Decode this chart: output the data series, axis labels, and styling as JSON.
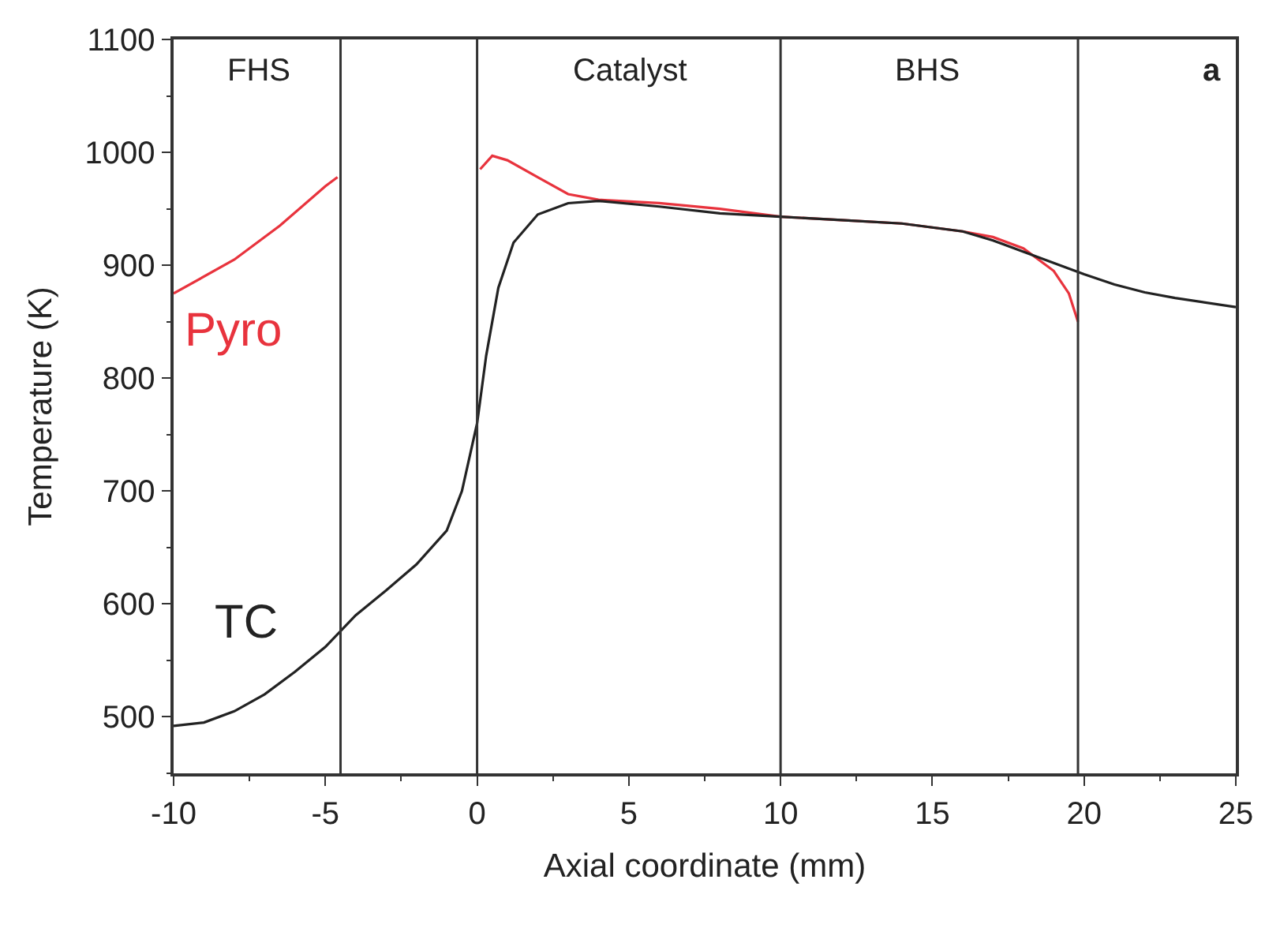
{
  "chart_data": {
    "type": "line",
    "xlabel": "Axial coordinate (mm)",
    "ylabel": "Temperature (K)",
    "xlim": [
      -10,
      25
    ],
    "xticks": [
      -10,
      -5,
      0,
      5,
      10,
      15,
      20,
      25
    ],
    "ylim": [
      450,
      1100
    ],
    "yticks": [
      500,
      600,
      700,
      800,
      900,
      1000,
      1100
    ],
    "legend": false,
    "line_style": "solid",
    "marker": "none",
    "series": [
      {
        "name": "Pyro",
        "color": "#e8333d",
        "x": [
          -10,
          -8,
          -6.5,
          -5,
          -4.6,
          null,
          0.1,
          0.5,
          1,
          2,
          3,
          4,
          6,
          8,
          10,
          12,
          14,
          16,
          17,
          18,
          19,
          19.5,
          19.8
        ],
        "values": [
          875,
          905,
          935,
          970,
          978,
          null,
          985,
          997,
          993,
          978,
          963,
          958,
          955,
          950,
          943,
          940,
          937,
          930,
          925,
          915,
          895,
          875,
          850
        ]
      },
      {
        "name": "TC",
        "color": "#222222",
        "x": [
          -10,
          -9,
          -8,
          -7,
          -6,
          -5,
          -4,
          -3,
          -2,
          -1,
          -0.5,
          0,
          0.3,
          0.7,
          1.2,
          2,
          3,
          4,
          6,
          8,
          10,
          12,
          14,
          16,
          17,
          18,
          19,
          20,
          21,
          22,
          23,
          25
        ],
        "values": [
          492,
          495,
          505,
          520,
          540,
          562,
          590,
          612,
          635,
          665,
          700,
          760,
          820,
          880,
          920,
          945,
          955,
          957,
          952,
          946,
          943,
          940,
          937,
          930,
          922,
          912,
          902,
          892,
          883,
          876,
          871,
          863
        ]
      }
    ],
    "ref_lines": [
      {
        "axis": "x",
        "value": -4.5,
        "color": "#333333"
      },
      {
        "axis": "x",
        "value": 0,
        "color": "#333333"
      },
      {
        "axis": "x",
        "value": 10,
        "color": "#333333"
      },
      {
        "axis": "x",
        "value": 19.8,
        "color": "#333333"
      }
    ],
    "annotations": [
      "FHS",
      "Catalyst",
      "BHS",
      "a"
    ]
  }
}
